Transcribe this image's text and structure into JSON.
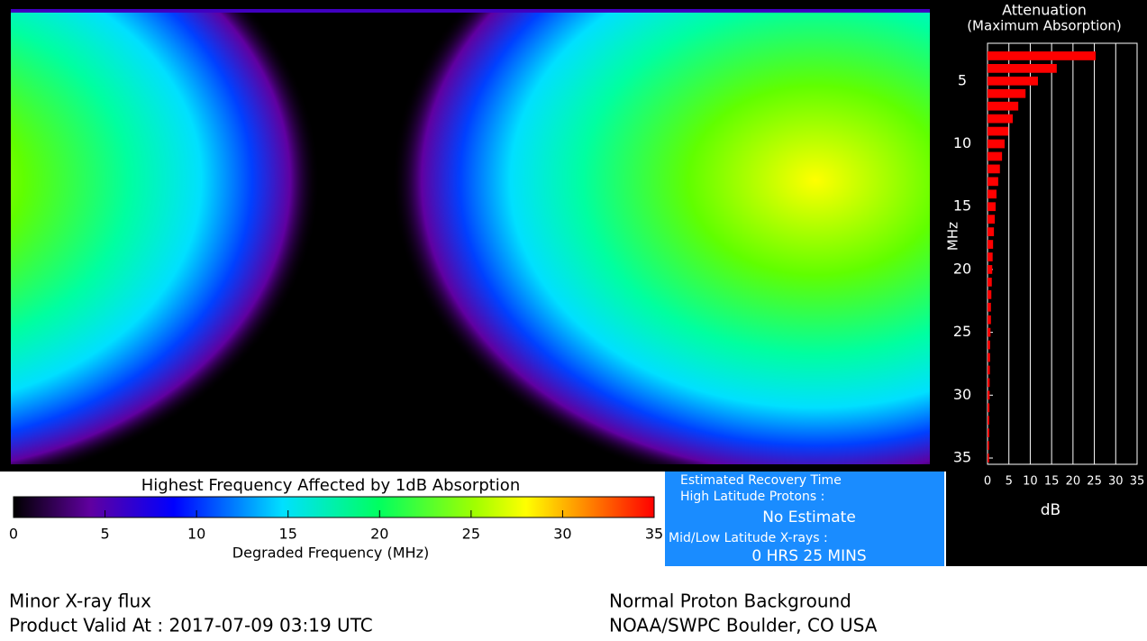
{
  "chart_data": {
    "type": "bar",
    "orientation": "horizontal",
    "title": "Attenuation",
    "subtitle": "(Maximum Absorption)",
    "x_label": "dB",
    "y_label": "MHz",
    "categories": [
      3,
      4,
      5,
      6,
      7,
      8,
      9,
      10,
      11,
      12,
      13,
      14,
      15,
      16,
      17,
      18,
      19,
      20,
      21,
      22,
      23,
      24,
      25,
      26,
      27,
      28,
      29,
      30,
      31,
      32,
      33,
      34,
      35
    ],
    "values": [
      25.3,
      16.2,
      11.8,
      8.9,
      7.2,
      5.9,
      4.9,
      4.0,
      3.4,
      2.9,
      2.5,
      2.1,
      1.9,
      1.7,
      1.5,
      1.3,
      1.2,
      1.1,
      1.0,
      0.9,
      0.8,
      0.8,
      0.7,
      0.6,
      0.6,
      0.55,
      0.5,
      0.5,
      0.45,
      0.4,
      0.4,
      0.35,
      0.35
    ],
    "color": "#ff0000",
    "xlim": [
      0,
      35
    ],
    "xticks": [
      0,
      5,
      10,
      15,
      20,
      25,
      30,
      35
    ],
    "ylim": [
      2,
      35.5
    ],
    "yticks": [
      5,
      10,
      15,
      20,
      25,
      30,
      35
    ],
    "grid": true
  },
  "colorbar": {
    "title": "Highest Frequency Affected by 1dB Absorption",
    "label": "Degraded Frequency (MHz)",
    "lim": [
      0,
      35
    ],
    "ticks": [
      0,
      5,
      10,
      15,
      20,
      25,
      30,
      35
    ]
  },
  "recovery": {
    "title": "Estimated Recovery Time",
    "high_label": "High Latitude Protons :",
    "high_value": "No Estimate",
    "low_label": "Mid/Low Latitude X-rays :",
    "low_value": "0 HRS 25 MINS"
  },
  "footer": {
    "xray": "Minor X-ray flux",
    "valid": "Product Valid At : 2017-07-09 03:19 UTC",
    "proton": "Normal Proton Background",
    "source": "NOAA/SWPC Boulder, CO USA"
  }
}
